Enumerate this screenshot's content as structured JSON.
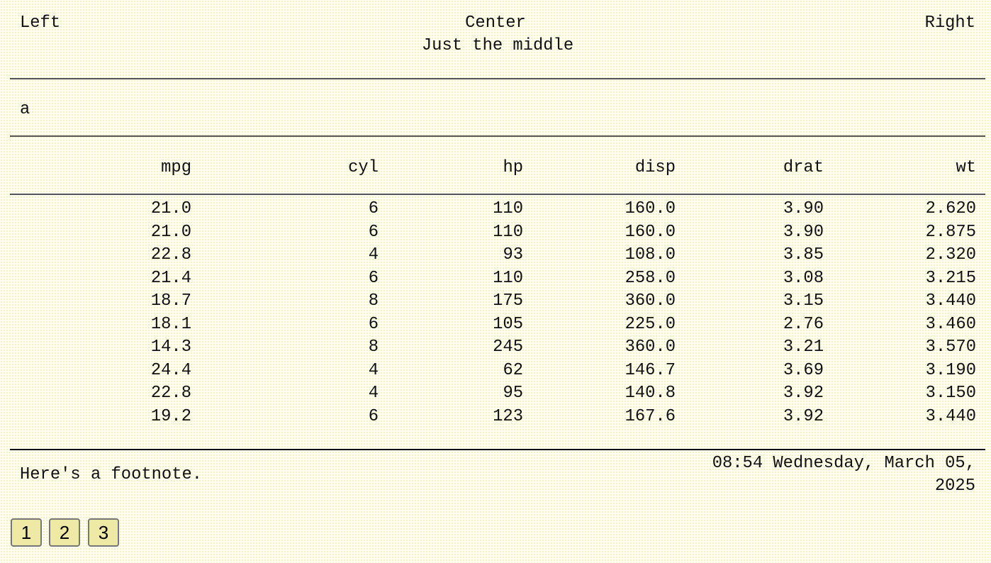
{
  "header": {
    "left": "Left",
    "center": "Center",
    "right": "Right",
    "subtitle": "Just the middle"
  },
  "section_label": "a",
  "table": {
    "columns": [
      "mpg",
      "cyl",
      "hp",
      "disp",
      "drat",
      "wt"
    ],
    "rows": [
      [
        "21.0",
        "6",
        "110",
        "160.0",
        "3.90",
        "2.620"
      ],
      [
        "21.0",
        "6",
        "110",
        "160.0",
        "3.90",
        "2.875"
      ],
      [
        "22.8",
        "4",
        "93",
        "108.0",
        "3.85",
        "2.320"
      ],
      [
        "21.4",
        "6",
        "110",
        "258.0",
        "3.08",
        "3.215"
      ],
      [
        "18.7",
        "8",
        "175",
        "360.0",
        "3.15",
        "3.440"
      ],
      [
        "18.1",
        "6",
        "105",
        "225.0",
        "2.76",
        "3.460"
      ],
      [
        "14.3",
        "8",
        "245",
        "360.0",
        "3.21",
        "3.570"
      ],
      [
        "24.4",
        "4",
        "62",
        "146.7",
        "3.69",
        "3.190"
      ],
      [
        "22.8",
        "4",
        "95",
        "140.8",
        "3.92",
        "3.150"
      ],
      [
        "19.2",
        "6",
        "123",
        "167.6",
        "3.92",
        "3.440"
      ]
    ]
  },
  "footer": {
    "footnote": "Here's a footnote.",
    "timestamp_line1": "08:54 Wednesday, March 05,",
    "timestamp_line2": "2025"
  },
  "pagination": {
    "pages": [
      "1",
      "2",
      "3"
    ]
  }
}
